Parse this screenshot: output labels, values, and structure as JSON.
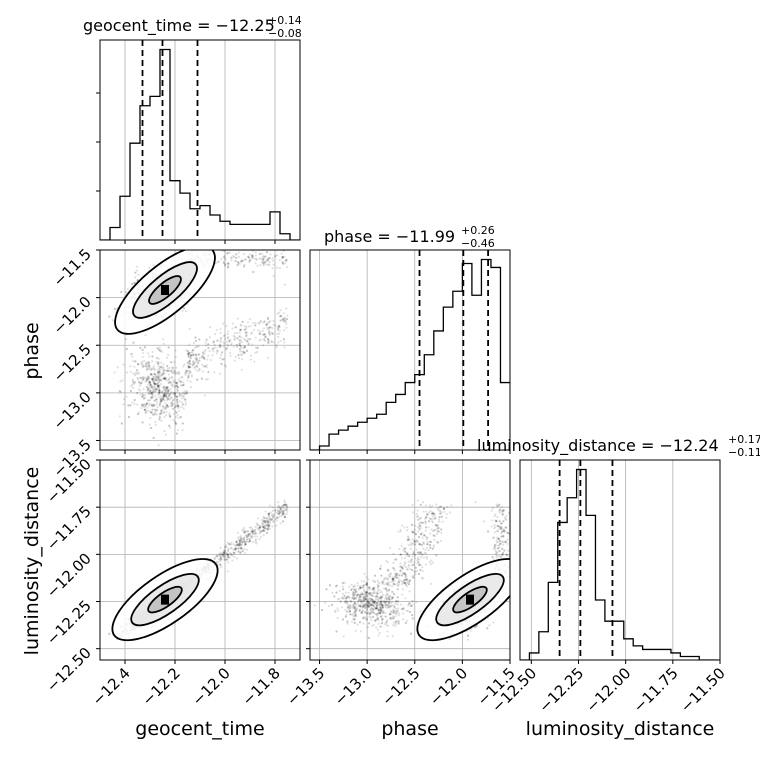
{
  "chart_data": {
    "type": "corner",
    "parameters": [
      "geocent_time",
      "phase",
      "luminosity_distance"
    ],
    "titles": [
      {
        "prefix": "geocent_time = −12.25",
        "plus": "+0.14",
        "minus": "−0.08"
      },
      {
        "prefix": "phase = −11.99",
        "plus": "+0.26",
        "minus": "−0.46"
      },
      {
        "prefix": "luminosity_distance = −12.24",
        "plus": "+0.17",
        "minus": "−0.11"
      }
    ],
    "axis_labels": {
      "x": [
        "geocent_time",
        "phase",
        "luminosity_distance"
      ],
      "y": [
        "",
        "phase",
        "luminosity_distance"
      ]
    },
    "ranges": {
      "geocent_time": [
        -12.5,
        -11.7
      ],
      "phase": [
        -13.6,
        -11.5
      ],
      "luminosity_distance": [
        -12.56,
        -11.5
      ]
    },
    "ticks": {
      "geocent_time": {
        "values": [
          -12.4,
          -12.2,
          -12.0,
          -11.8
        ],
        "labels": [
          "−12.4",
          "−12.2",
          "−12.0",
          "−11.8"
        ]
      },
      "phase": {
        "values": [
          -13.5,
          -13.0,
          -12.5,
          -12.0,
          -11.5
        ],
        "labels": [
          "−13.5",
          "−13.0",
          "−12.5",
          "−12.0",
          "−11.5"
        ]
      },
      "luminosity_distance": {
        "values": [
          -12.5,
          -12.25,
          -12.0,
          -11.75,
          -11.5
        ],
        "labels": [
          "−12.50",
          "−12.25",
          "−12.00",
          "−11.75",
          "−11.50"
        ]
      }
    },
    "quantiles": {
      "geocent_time": [
        -12.33,
        -12.25,
        -12.11
      ],
      "phase": [
        -12.45,
        -11.99,
        -11.73
      ],
      "luminosity_distance": [
        -12.35,
        -12.24,
        -12.07
      ]
    },
    "histograms": {
      "geocent_time": {
        "edges": [
          -12.5,
          -12.46,
          -12.42,
          -12.38,
          -12.34,
          -12.3,
          -12.26,
          -12.22,
          -12.18,
          -12.14,
          -12.1,
          -12.06,
          -12.02,
          -11.98,
          -11.94,
          -11.9,
          -11.86,
          -11.82,
          -11.78,
          -11.74,
          -11.7
        ],
        "counts": [
          0,
          4,
          14,
          31,
          43,
          46,
          61,
          19,
          15,
          10,
          11,
          8,
          6,
          5,
          5,
          5,
          5,
          9,
          2,
          0
        ]
      },
      "phase": {
        "edges": [
          -13.6,
          -13.5,
          -13.4,
          -13.3,
          -13.2,
          -13.1,
          -13.0,
          -12.9,
          -12.8,
          -12.7,
          -12.6,
          -12.5,
          -12.4,
          -12.3,
          -12.2,
          -12.1,
          -12.0,
          -11.9,
          -11.8,
          -11.7,
          -11.6,
          -11.5
        ],
        "counts": [
          0,
          1,
          4,
          5,
          6,
          7,
          8,
          9,
          12,
          14,
          17,
          19,
          24,
          30,
          36,
          40,
          47,
          39,
          48,
          46,
          17
        ]
      },
      "luminosity_distance": {
        "edges": [
          -12.56,
          -12.51,
          -12.46,
          -12.41,
          -12.36,
          -12.31,
          -12.26,
          -12.21,
          -12.16,
          -12.11,
          -12.06,
          -12.01,
          -11.96,
          -11.91,
          -11.86,
          -11.81,
          -11.76,
          -11.71,
          -11.66,
          -11.61,
          -11.56,
          -11.51
        ],
        "counts": [
          0,
          2,
          8,
          22,
          39,
          46,
          54,
          41,
          17,
          11,
          11,
          6,
          4,
          3,
          3,
          3,
          2,
          1,
          1,
          0,
          0
        ]
      }
    },
    "grid": true
  }
}
